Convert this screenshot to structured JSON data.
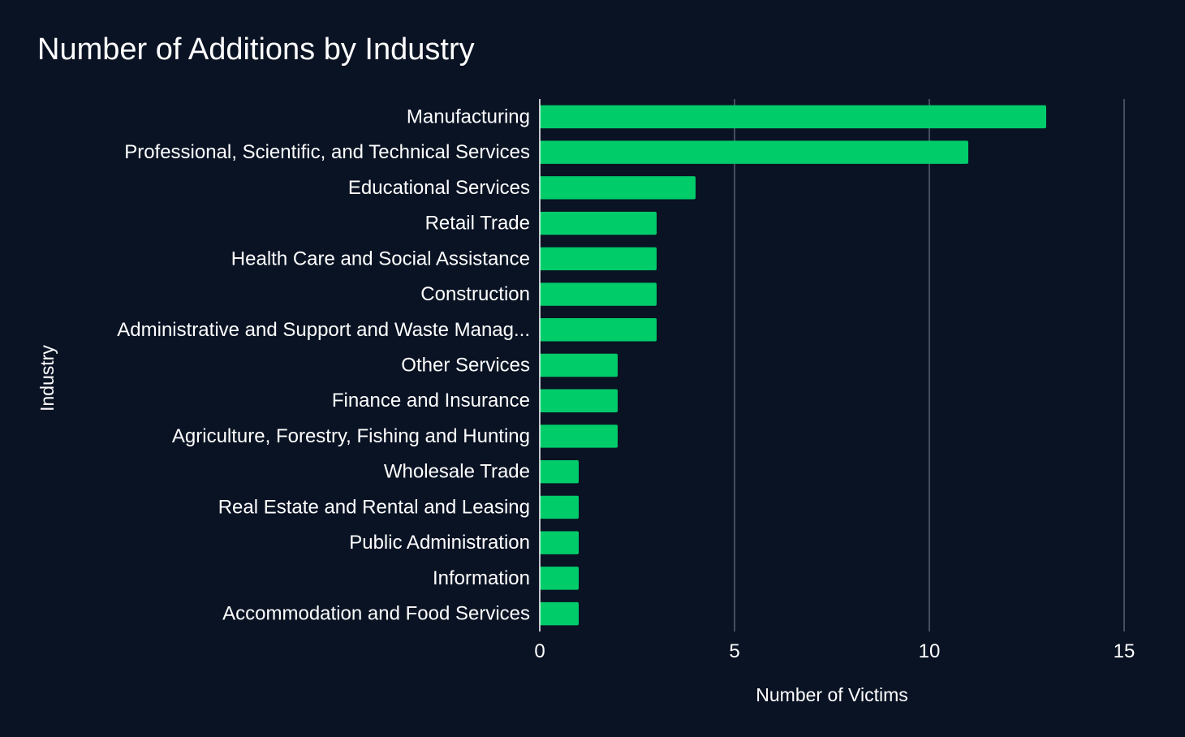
{
  "chart_data": {
    "type": "bar",
    "orientation": "horizontal",
    "title": "Number of Additions by Industry",
    "xlabel": "Number of Victims",
    "ylabel": "Industry",
    "xlim": [
      0,
      15
    ],
    "xticks": [
      0,
      5,
      10,
      15
    ],
    "grid": "vertical",
    "bar_color": "#00cc6a",
    "gridline_color": "#5a6170",
    "background_color": "#0a1324",
    "categories": [
      "Manufacturing",
      "Professional, Scientific, and Technical Services",
      "Educational Services",
      "Retail Trade",
      "Health Care and Social Assistance",
      "Construction",
      "Administrative and Support and Waste Manag...",
      "Other Services",
      "Finance and Insurance",
      "Agriculture, Forestry, Fishing and Hunting",
      "Wholesale Trade",
      "Real Estate and Rental and Leasing",
      "Public Administration",
      "Information",
      "Accommodation and Food Services"
    ],
    "values": [
      13,
      11,
      4,
      3,
      3,
      3,
      3,
      2,
      2,
      2,
      1,
      1,
      1,
      1,
      1
    ]
  }
}
